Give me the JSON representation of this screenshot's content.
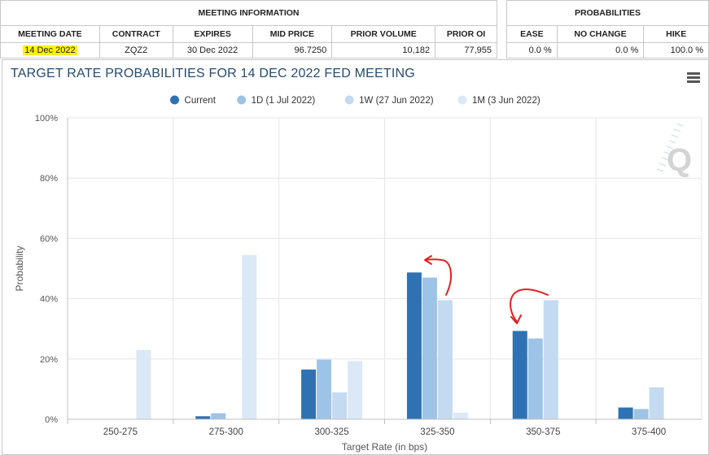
{
  "meeting_info": {
    "group_label": "MEETING INFORMATION",
    "headers": [
      "MEETING DATE",
      "CONTRACT",
      "EXPIRES",
      "MID PRICE",
      "PRIOR VOLUME",
      "PRIOR OI"
    ],
    "row": [
      "14 Dec 2022",
      "ZQZ2",
      "30 Dec 2022",
      "96.7250",
      "10,182",
      "77,955"
    ]
  },
  "probabilities": {
    "group_label": "PROBABILITIES",
    "headers": [
      "EASE",
      "NO CHANGE",
      "HIKE"
    ],
    "row": [
      "0.0 %",
      "0.0 %",
      "100.0 %"
    ]
  },
  "chart": {
    "title": "TARGET RATE PROBABILITIES FOR 14 DEC 2022 FED MEETING",
    "menu_icon": "hamburger-menu-icon",
    "watermark": "Q"
  },
  "chart_data": {
    "type": "bar",
    "xlabel": "Target Rate (in bps)",
    "ylabel": "Probability",
    "ylim": [
      0,
      100
    ],
    "yticks": [
      "0%",
      "20%",
      "40%",
      "60%",
      "80%",
      "100%"
    ],
    "categories": [
      "250-275",
      "275-300",
      "300-325",
      "325-350",
      "350-375",
      "375-400"
    ],
    "legend_position": "top-center",
    "grid": true,
    "series": [
      {
        "name": "Current",
        "color": "#2f72b4",
        "values": [
          0,
          1.0,
          16.5,
          48.7,
          29.3,
          3.9
        ]
      },
      {
        "name": "1D (1 Jul 2022)",
        "color": "#9dc3e6",
        "values": [
          0,
          2.0,
          19.8,
          47.0,
          26.8,
          3.4
        ]
      },
      {
        "name": "1W (27 Jun 2022)",
        "color": "#c4daf0",
        "values": [
          0,
          0,
          8.9,
          39.5,
          39.5,
          10.6
        ]
      },
      {
        "name": "1M (3 Jun 2022)",
        "color": "#dbe8f5",
        "values": [
          23.0,
          54.5,
          19.3,
          2.2,
          0,
          0
        ]
      }
    ],
    "annotation_color": "#e02020"
  }
}
